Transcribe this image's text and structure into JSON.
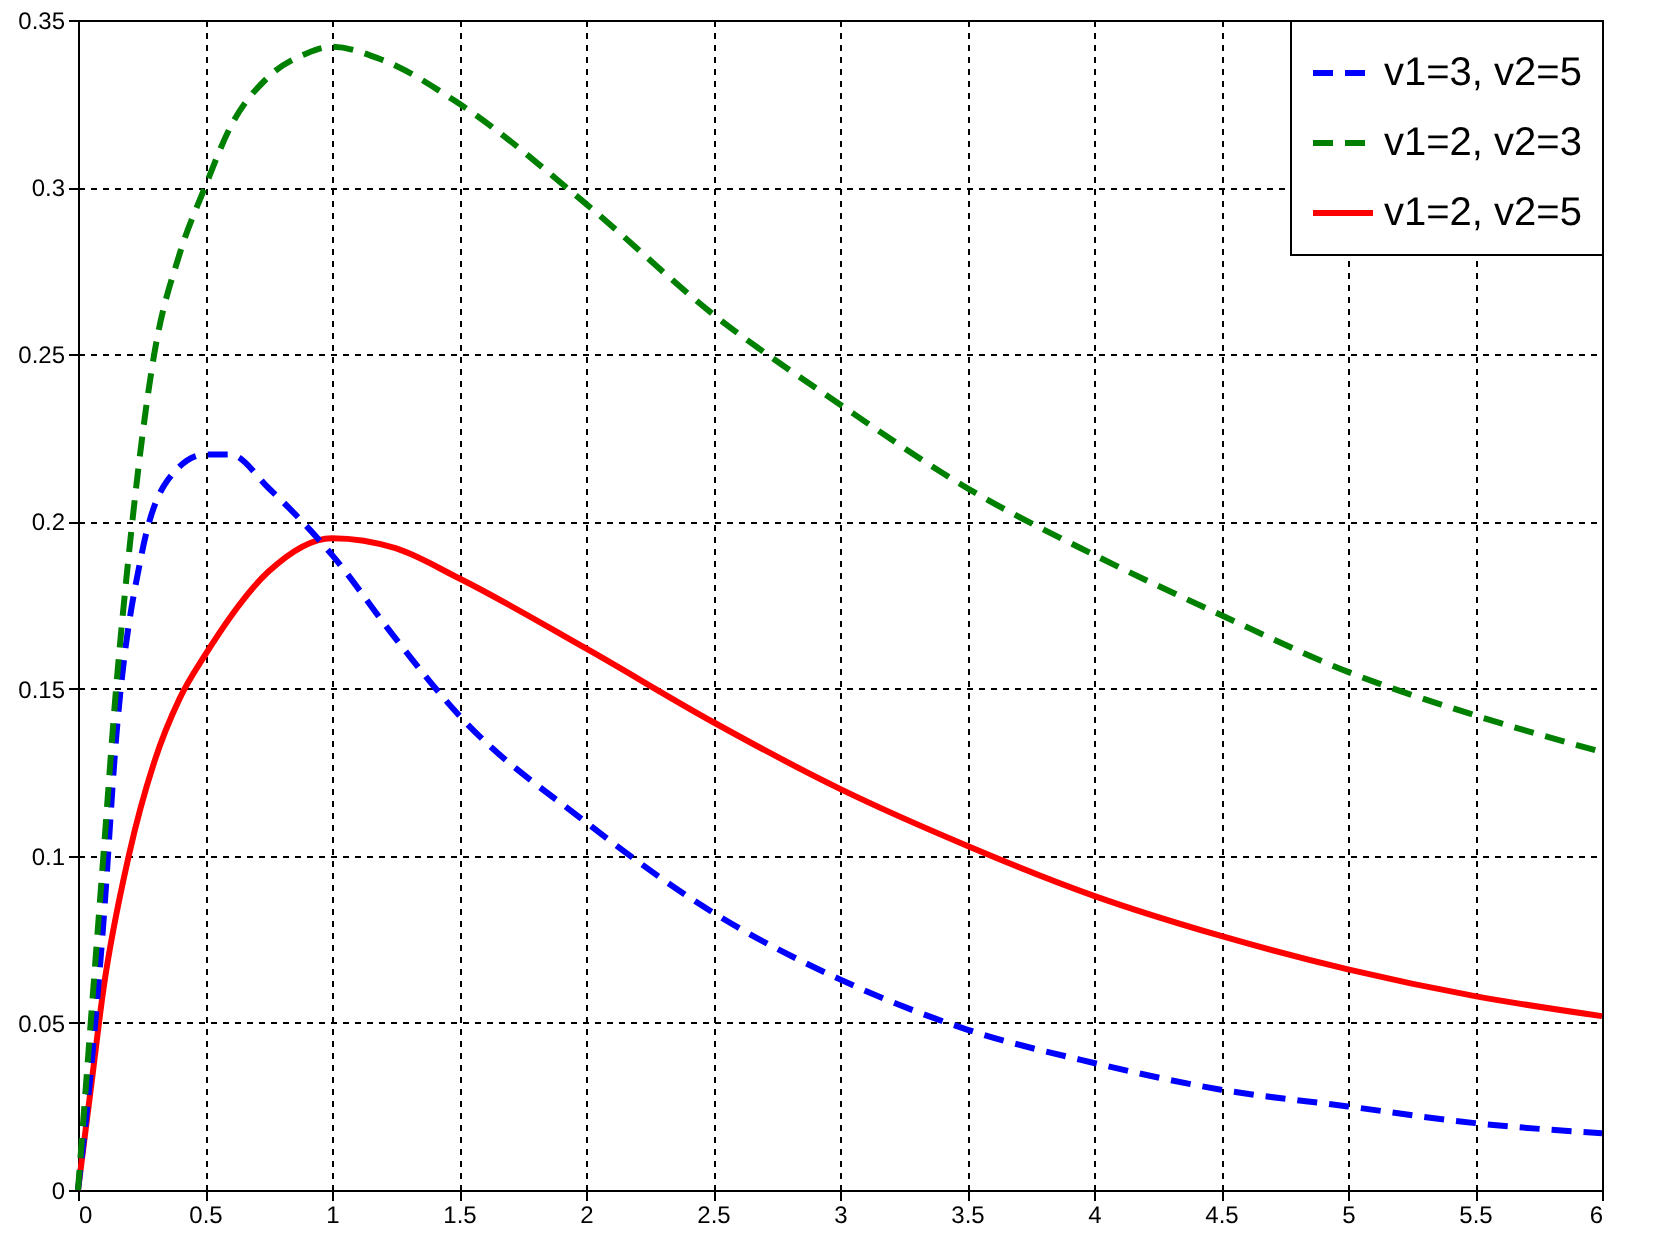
{
  "chart_data": {
    "type": "line",
    "xlim": [
      0,
      6
    ],
    "ylim": [
      0,
      0.35
    ],
    "xticks": [
      0,
      0.5,
      1,
      1.5,
      2,
      2.5,
      3,
      3.5,
      4,
      4.5,
      5,
      5.5,
      6
    ],
    "yticks": [
      0,
      0.05,
      0.1,
      0.15,
      0.2,
      0.25,
      0.3,
      0.35
    ],
    "grid": true,
    "legend": "top right",
    "series": [
      {
        "name": "v1=3, v2=5",
        "color": "#0000ff",
        "line_style": "dashed",
        "x": [
          0,
          0.05,
          0.1,
          0.15,
          0.25,
          0.35,
          0.5,
          0.6,
          0.75,
          1,
          1.25,
          1.5,
          2,
          2.5,
          3,
          3.5,
          4,
          4.5,
          5,
          5.5,
          6
        ],
        "values": [
          0,
          0.035,
          0.08,
          0.135,
          0.19,
          0.212,
          0.22,
          0.22,
          0.21,
          0.19,
          0.165,
          0.142,
          0.11,
          0.083,
          0.063,
          0.048,
          0.038,
          0.03,
          0.025,
          0.02,
          0.017
        ]
      },
      {
        "name": "v1=2, v2=3",
        "color": "#008000",
        "line_style": "dashed",
        "x": [
          0,
          0.05,
          0.1,
          0.15,
          0.2,
          0.3,
          0.4,
          0.5,
          0.6,
          0.75,
          0.9,
          1,
          1.2,
          1.5,
          2,
          2.5,
          3,
          3.5,
          4,
          4.5,
          5,
          5.5,
          6
        ],
        "values": [
          0,
          0.05,
          0.1,
          0.15,
          0.19,
          0.25,
          0.28,
          0.3,
          0.318,
          0.333,
          0.34,
          0.342,
          0.338,
          0.325,
          0.295,
          0.262,
          0.235,
          0.21,
          0.19,
          0.172,
          0.155,
          0.142,
          0.131
        ]
      },
      {
        "name": "v1=2, v2=5",
        "color": "#ff0000",
        "line_style": "solid",
        "x": [
          0,
          0.05,
          0.1,
          0.2,
          0.3,
          0.4,
          0.5,
          0.75,
          1,
          1.25,
          1.5,
          2,
          2.5,
          3,
          3.5,
          4,
          4.5,
          5,
          5.5,
          6
        ],
        "values": [
          0,
          0.03,
          0.06,
          0.1,
          0.128,
          0.147,
          0.16,
          0.185,
          0.195,
          0.192,
          0.183,
          0.162,
          0.14,
          0.12,
          0.103,
          0.088,
          0.076,
          0.066,
          0.058,
          0.052
        ]
      }
    ]
  }
}
